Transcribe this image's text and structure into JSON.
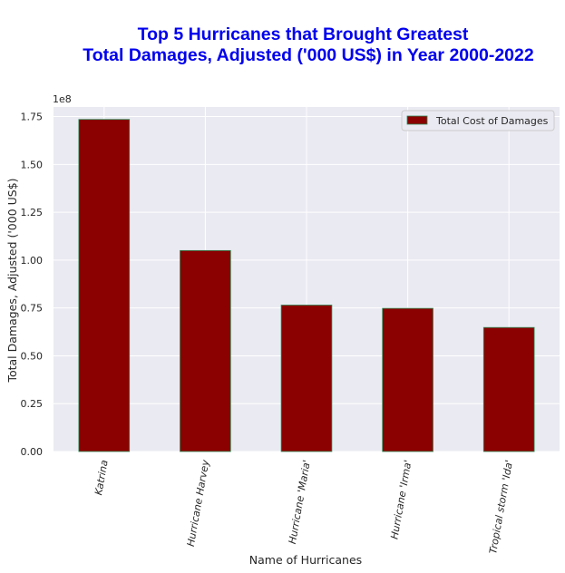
{
  "chart_data": {
    "type": "bar",
    "title_lines": [
      "Top 5 Hurricanes that Brought Greatest",
      "Total Damages, Adjusted ('000 US$) in Year 2000-2022"
    ],
    "xlabel": "Name of Hurricanes",
    "ylabel": "Total Damages, Adjusted ('000 US$)",
    "y_scale_label": "1e8",
    "categories": [
      "Katrina",
      "Hurricane Harvey",
      "Hurricane 'Maria'",
      "Hurricane 'Irma'",
      "Tropical storm 'Ida'"
    ],
    "series": [
      {
        "name": "Total Cost of Damages",
        "values": [
          173500000,
          105000000,
          76500000,
          74800000,
          64800000
        ]
      }
    ],
    "ylim": [
      0,
      180000000
    ],
    "yticks": [
      0,
      25000000,
      50000000,
      75000000,
      100000000,
      125000000,
      150000000,
      175000000
    ],
    "ytick_labels": [
      "0.00",
      "0.25",
      "0.50",
      "0.75",
      "1.00",
      "1.25",
      "1.50",
      "1.75"
    ],
    "grid": true,
    "legend_position": "top-right",
    "colors": {
      "background": "#eaeaf2",
      "grid": "#ffffff",
      "bar_fill": "#8b0000",
      "bar_edge": "#2e8b57",
      "title": "#0000ee",
      "text": "#262626"
    }
  }
}
